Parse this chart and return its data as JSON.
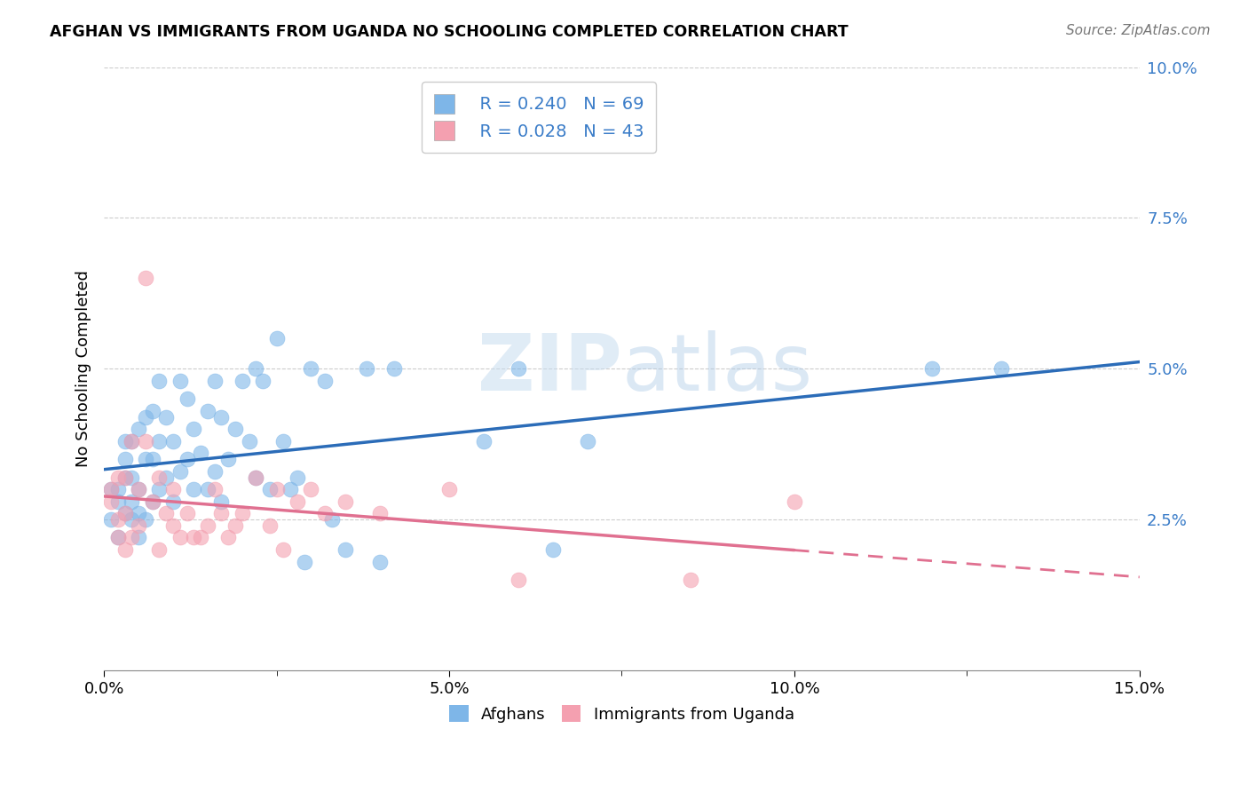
{
  "title": "AFGHAN VS IMMIGRANTS FROM UGANDA NO SCHOOLING COMPLETED CORRELATION CHART",
  "source": "Source: ZipAtlas.com",
  "ylabel": "No Schooling Completed",
  "xlabel": "",
  "xlim": [
    0.0,
    0.15
  ],
  "ylim": [
    0.0,
    0.1
  ],
  "xticks": [
    0.0,
    0.05,
    0.1,
    0.15
  ],
  "xtick_labels": [
    "0.0%",
    "",
    "5.0%",
    "",
    "10.0%",
    "",
    "15.0%"
  ],
  "xticks_vals": [
    0.0,
    0.025,
    0.05,
    0.075,
    0.1,
    0.125,
    0.15
  ],
  "yticks_right": [
    0.025,
    0.05,
    0.075,
    0.1
  ],
  "ytick_labels_right": [
    "2.5%",
    "5.0%",
    "7.5%",
    "10.0%"
  ],
  "afghans_color": "#7EB6E8",
  "uganda_color": "#F4A0B0",
  "afghan_R": 0.24,
  "afghan_N": 69,
  "uganda_R": 0.028,
  "uganda_N": 43,
  "afghan_line_color": "#2B6CB8",
  "uganda_line_color": "#E07090",
  "watermark_zip": "ZIP",
  "watermark_atlas": "atlas",
  "legend_color": "#3A7CC8",
  "afghans_x": [
    0.001,
    0.001,
    0.002,
    0.002,
    0.002,
    0.003,
    0.003,
    0.003,
    0.003,
    0.004,
    0.004,
    0.004,
    0.004,
    0.005,
    0.005,
    0.005,
    0.005,
    0.006,
    0.006,
    0.006,
    0.007,
    0.007,
    0.007,
    0.008,
    0.008,
    0.008,
    0.009,
    0.009,
    0.01,
    0.01,
    0.011,
    0.011,
    0.012,
    0.012,
    0.013,
    0.013,
    0.014,
    0.015,
    0.015,
    0.016,
    0.016,
    0.017,
    0.017,
    0.018,
    0.019,
    0.02,
    0.021,
    0.022,
    0.022,
    0.023,
    0.024,
    0.025,
    0.026,
    0.027,
    0.028,
    0.029,
    0.03,
    0.032,
    0.033,
    0.035,
    0.038,
    0.04,
    0.042,
    0.055,
    0.06,
    0.065,
    0.07,
    0.12,
    0.13
  ],
  "afghans_y": [
    0.03,
    0.025,
    0.028,
    0.022,
    0.03,
    0.026,
    0.032,
    0.035,
    0.038,
    0.025,
    0.028,
    0.032,
    0.038,
    0.022,
    0.026,
    0.03,
    0.04,
    0.025,
    0.035,
    0.042,
    0.028,
    0.035,
    0.043,
    0.03,
    0.038,
    0.048,
    0.032,
    0.042,
    0.028,
    0.038,
    0.033,
    0.048,
    0.035,
    0.045,
    0.03,
    0.04,
    0.036,
    0.03,
    0.043,
    0.033,
    0.048,
    0.028,
    0.042,
    0.035,
    0.04,
    0.048,
    0.038,
    0.05,
    0.032,
    0.048,
    0.03,
    0.055,
    0.038,
    0.03,
    0.032,
    0.018,
    0.05,
    0.048,
    0.025,
    0.02,
    0.05,
    0.018,
    0.05,
    0.038,
    0.05,
    0.02,
    0.038,
    0.05,
    0.05
  ],
  "uganda_x": [
    0.001,
    0.001,
    0.002,
    0.002,
    0.002,
    0.003,
    0.003,
    0.003,
    0.004,
    0.004,
    0.005,
    0.005,
    0.006,
    0.006,
    0.007,
    0.008,
    0.008,
    0.009,
    0.01,
    0.01,
    0.011,
    0.012,
    0.013,
    0.014,
    0.015,
    0.016,
    0.017,
    0.018,
    0.019,
    0.02,
    0.022,
    0.024,
    0.025,
    0.026,
    0.028,
    0.03,
    0.032,
    0.035,
    0.04,
    0.05,
    0.06,
    0.085,
    0.1
  ],
  "uganda_y": [
    0.028,
    0.03,
    0.022,
    0.025,
    0.032,
    0.02,
    0.026,
    0.032,
    0.022,
    0.038,
    0.024,
    0.03,
    0.065,
    0.038,
    0.028,
    0.032,
    0.02,
    0.026,
    0.024,
    0.03,
    0.022,
    0.026,
    0.022,
    0.022,
    0.024,
    0.03,
    0.026,
    0.022,
    0.024,
    0.026,
    0.032,
    0.024,
    0.03,
    0.02,
    0.028,
    0.03,
    0.026,
    0.028,
    0.026,
    0.03,
    0.015,
    0.015,
    0.028
  ]
}
